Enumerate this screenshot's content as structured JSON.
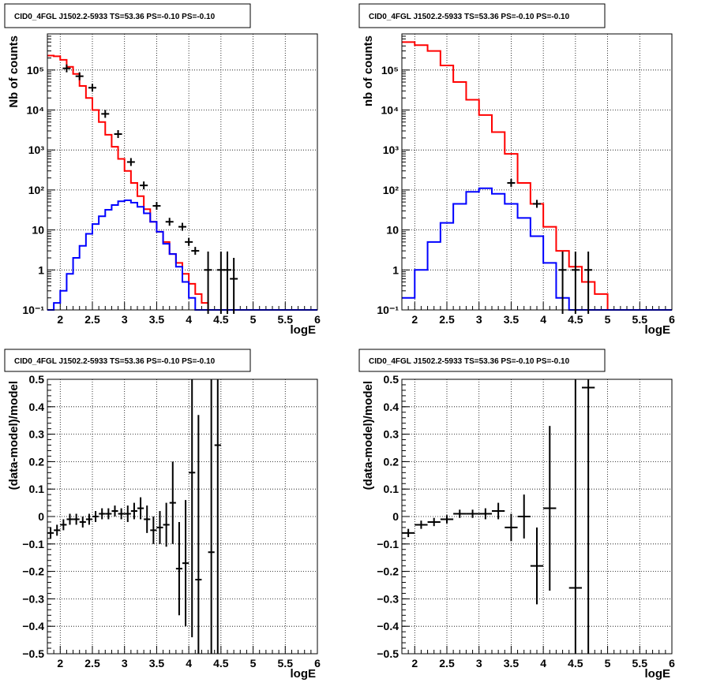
{
  "chart_data": [
    {
      "type": "line",
      "panel": "top-left",
      "title": "CID0_4FGL J1502.2-5933 TS=53.36 PS=-0.10 PS=-0.10",
      "xlabel": "logE",
      "ylabel": "Nb of counts",
      "xlim": [
        1.8,
        6.0
      ],
      "ylim": [
        0.1,
        800000
      ],
      "yscale": "log",
      "grid": true,
      "x_ticks": [
        "2",
        "2.5",
        "3",
        "3.5",
        "4",
        "4.5",
        "5",
        "5.5",
        "6"
      ],
      "y_ticks": [
        "10⁻¹",
        "1",
        "10",
        "10²",
        "10³",
        "10⁴",
        "10⁵"
      ],
      "bin_edges": [
        1.8,
        1.9,
        2.0,
        2.1,
        2.2,
        2.3,
        2.4,
        2.5,
        2.6,
        2.7,
        2.8,
        2.9,
        3.0,
        3.1,
        3.2,
        3.3,
        3.4,
        3.5,
        3.6,
        3.7,
        3.8,
        3.9,
        4.0,
        4.1,
        4.2,
        4.3,
        4.4,
        4.5,
        4.6,
        4.7,
        4.8,
        4.9,
        5.0,
        5.1,
        5.2,
        5.3,
        5.4,
        5.5,
        5.6,
        5.7,
        5.8,
        5.9,
        6.0
      ],
      "series": [
        {
          "kind": "step",
          "color": "#ff0000",
          "values": [
            230000,
            220000,
            180000,
            120000,
            80000,
            40000,
            20000,
            10000,
            5000,
            2400,
            1200,
            600,
            300,
            150,
            70,
            33,
            16,
            9,
            5,
            2.5,
            1.5,
            0.8,
            0.45,
            0.25,
            0.15,
            0.1,
            0.1,
            0.1,
            0.1,
            0.1,
            0.1,
            0.1,
            0.1,
            0.1,
            0.1,
            0.1,
            0.1,
            0.1,
            0.1,
            0.1,
            0.1,
            0.1
          ]
        },
        {
          "kind": "step",
          "color": "#0000ff",
          "values": [
            0.1,
            0.15,
            0.3,
            0.8,
            2,
            4,
            8,
            14,
            22,
            32,
            42,
            52,
            55,
            48,
            38,
            26,
            16,
            9,
            4.5,
            2.5,
            1.2,
            0.5,
            0.2,
            0.1,
            0.1,
            0.1,
            0.1,
            0.1,
            0.1,
            0.1,
            0.1,
            0.1,
            0.1,
            0.1,
            0.1,
            0.1,
            0.1,
            0.1,
            0.1,
            0.1,
            0.1,
            0.1
          ]
        },
        {
          "kind": "points",
          "color": "#000000",
          "x": [
            2.1,
            2.3,
            2.5,
            2.7,
            2.9,
            3.1,
            3.3,
            3.5,
            3.7,
            3.9,
            4.0,
            4.1,
            4.3,
            4.5,
            4.6,
            4.7
          ],
          "y": [
            110000,
            70000,
            36000,
            8000,
            2500,
            500,
            130,
            40,
            16,
            12,
            5,
            3,
            1,
            1,
            1,
            0.6
          ],
          "err_lo": [
            0,
            0,
            0,
            0,
            0,
            0,
            0,
            0,
            0,
            0,
            0,
            0,
            0.9,
            0.9,
            0.9,
            0.5
          ],
          "err_hi": [
            0,
            0,
            0,
            0,
            0,
            0,
            0,
            0,
            0,
            0,
            0,
            0,
            1.3,
            1.3,
            1.3,
            1
          ]
        }
      ]
    },
    {
      "type": "line",
      "panel": "top-right",
      "title": "CID0_4FGL J1502.2-5933 TS=53.36 PS=-0.10 PS=-0.10",
      "xlabel": "logE",
      "ylabel": "nb of counts",
      "xlim": [
        1.8,
        6.0
      ],
      "ylim": [
        0.1,
        800000
      ],
      "yscale": "log",
      "grid": true,
      "x_ticks": [
        "2",
        "2.5",
        "3",
        "3.5",
        "4",
        "4.5",
        "5",
        "5.5",
        "6"
      ],
      "y_ticks": [
        "10⁻¹",
        "1",
        "10",
        "10²",
        "10³",
        "10⁴",
        "10⁵"
      ],
      "bin_edges": [
        1.8,
        2.0,
        2.2,
        2.4,
        2.6,
        2.8,
        3.0,
        3.2,
        3.4,
        3.6,
        3.8,
        4.0,
        4.2,
        4.4,
        4.6,
        4.8,
        5.0,
        5.2,
        5.4,
        5.6,
        5.8,
        6.0
      ],
      "series": [
        {
          "kind": "step",
          "color": "#ff0000",
          "values": [
            500000,
            420000,
            300000,
            130000,
            50000,
            18000,
            7500,
            2800,
            800,
            150,
            45,
            12,
            3,
            1.2,
            0.5,
            0.25,
            0.1,
            0.1,
            0.1,
            0.1,
            0.1
          ]
        },
        {
          "kind": "step",
          "color": "#0000ff",
          "values": [
            0.2,
            1,
            5,
            15,
            45,
            90,
            110,
            80,
            45,
            20,
            7,
            1.5,
            0.2,
            0.1,
            0.1,
            0.1,
            0.1,
            0.1,
            0.1,
            0.1,
            0.1
          ]
        },
        {
          "kind": "points",
          "color": "#000000",
          "x": [
            3.5,
            3.9,
            4.3,
            4.5,
            4.7
          ],
          "y": [
            150,
            45,
            1,
            1,
            1
          ],
          "err_lo": [
            0,
            0,
            0.9,
            0.9,
            0.9
          ],
          "err_hi": [
            0,
            0,
            1.3,
            1.3,
            1.3
          ]
        }
      ]
    },
    {
      "type": "scatter",
      "panel": "bottom-left",
      "title": "CID0_4FGL J1502.2-5933 TS=53.36 PS=-0.10 PS=-0.10",
      "xlabel": "logE",
      "ylabel": "(data-model)/model",
      "xlim": [
        1.8,
        6.0
      ],
      "ylim": [
        -0.5,
        0.5
      ],
      "grid": true,
      "x_ticks": [
        "2",
        "2.5",
        "3",
        "3.5",
        "4",
        "4.5",
        "5",
        "5.5",
        "6"
      ],
      "y_ticks": [
        "−0.5",
        "−0.4",
        "−0.3",
        "−0.2",
        "−0.1",
        "0",
        "0.1",
        "0.2",
        "0.3",
        "0.4",
        "0.5"
      ],
      "series": [
        {
          "kind": "errorbars",
          "color": "#000000",
          "xerr": 0.05,
          "x": [
            1.85,
            1.95,
            2.05,
            2.15,
            2.25,
            2.35,
            2.45,
            2.55,
            2.65,
            2.75,
            2.85,
            2.95,
            3.05,
            3.15,
            3.25,
            3.35,
            3.45,
            3.55,
            3.65,
            3.75,
            3.85,
            3.95,
            4.05,
            4.15,
            4.35,
            4.45
          ],
          "y": [
            -0.06,
            -0.05,
            -0.03,
            -0.01,
            -0.01,
            -0.02,
            -0.01,
            0.0,
            0.01,
            0.01,
            0.02,
            0.01,
            0.01,
            0.02,
            0.03,
            -0.01,
            -0.05,
            -0.04,
            -0.03,
            0.05,
            -0.19,
            -0.17,
            0.16,
            -0.23,
            -0.13,
            0.26
          ],
          "yerr": [
            0.02,
            0.02,
            0.02,
            0.02,
            0.02,
            0.02,
            0.02,
            0.02,
            0.02,
            0.02,
            0.02,
            0.02,
            0.03,
            0.03,
            0.04,
            0.05,
            0.05,
            0.06,
            0.08,
            0.15,
            0.17,
            0.23,
            0.6,
            0.6,
            0.7,
            0.8
          ]
        }
      ]
    },
    {
      "type": "scatter",
      "panel": "bottom-right",
      "title": "CID0_4FGL J1502.2-5933 TS=53.36 PS=-0.10 PS=-0.10",
      "xlabel": "logE",
      "ylabel": "(data-model)/model",
      "xlim": [
        1.8,
        6.0
      ],
      "ylim": [
        -0.5,
        0.5
      ],
      "grid": true,
      "x_ticks": [
        "2",
        "2.5",
        "3",
        "3.5",
        "4",
        "4.5",
        "5",
        "5.5",
        "6"
      ],
      "y_ticks": [
        "−0.5",
        "−0.4",
        "−0.3",
        "−0.2",
        "−0.1",
        "0",
        "0.1",
        "0.2",
        "0.3",
        "0.4",
        "0.5"
      ],
      "series": [
        {
          "kind": "errorbars",
          "color": "#000000",
          "xerr": 0.1,
          "x": [
            1.9,
            2.1,
            2.3,
            2.5,
            2.7,
            2.9,
            3.1,
            3.3,
            3.5,
            3.7,
            3.9,
            4.1,
            4.5,
            4.7
          ],
          "y": [
            -0.06,
            -0.03,
            -0.02,
            -0.01,
            0.01,
            0.01,
            0.01,
            0.02,
            -0.04,
            0.0,
            -0.18,
            0.03,
            -0.26,
            0.47
          ],
          "yerr": [
            0.015,
            0.015,
            0.015,
            0.015,
            0.015,
            0.015,
            0.02,
            0.03,
            0.05,
            0.08,
            0.14,
            0.3,
            0.8,
            1.0
          ]
        }
      ]
    }
  ]
}
